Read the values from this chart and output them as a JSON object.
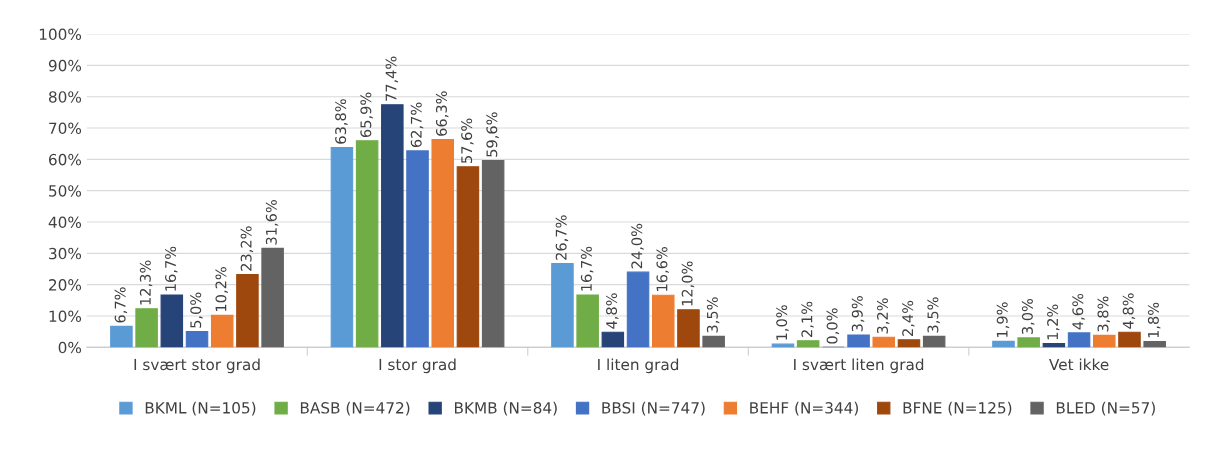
{
  "chart_data": {
    "type": "bar",
    "categories": [
      "I svært stor grad",
      "I stor grad",
      "I liten grad",
      "I svært liten grad",
      "Vet ikke"
    ],
    "series": [
      {
        "name": "BKML (N=105)",
        "color": "#5b9bd5",
        "values": [
          6.7,
          63.8,
          26.7,
          1.0,
          1.9
        ],
        "value_labels": [
          "6,7%",
          "63,8%",
          "26,7%",
          "1,0%",
          "1,9%"
        ]
      },
      {
        "name": "BASB (N=472)",
        "color": "#70ad47",
        "values": [
          12.3,
          65.9,
          16.7,
          2.1,
          3.0
        ],
        "value_labels": [
          "12,3%",
          "65,9%",
          "16,7%",
          "2,1%",
          "3,0%"
        ]
      },
      {
        "name": "BKMB (N=84)",
        "color": "#264478",
        "values": [
          16.7,
          77.4,
          4.8,
          0.0,
          1.2
        ],
        "value_labels": [
          "16,7%",
          "77,4%",
          "4,8%",
          "0,0%",
          "1,2%"
        ]
      },
      {
        "name": "BBSI (N=747)",
        "color": "#4472c4",
        "values": [
          5.0,
          62.7,
          24.0,
          3.9,
          4.6
        ],
        "value_labels": [
          "5,0%",
          "62,7%",
          "24,0%",
          "3,9%",
          "4,6%"
        ]
      },
      {
        "name": "BEHF (N=344)",
        "color": "#ed7d31",
        "values": [
          10.2,
          66.3,
          16.6,
          3.2,
          3.8
        ],
        "value_labels": [
          "10,2%",
          "66,3%",
          "16,6%",
          "3,2%",
          "3,8%"
        ]
      },
      {
        "name": "BFNE (N=125)",
        "color": "#9e480e",
        "values": [
          23.2,
          57.6,
          12.0,
          2.4,
          4.8
        ],
        "value_labels": [
          "23,2%",
          "57,6%",
          "12,0%",
          "2,4%",
          "4,8%"
        ]
      },
      {
        "name": "BLED (N=57)",
        "color": "#636363",
        "values": [
          31.6,
          59.6,
          3.5,
          3.5,
          1.8
        ],
        "value_labels": [
          "31,6%",
          "59,6%",
          "3,5%",
          "3,5%",
          "1,8%"
        ]
      }
    ],
    "ylim": [
      0,
      100
    ],
    "yticks": [
      {
        "value": 0,
        "label": "0%"
      },
      {
        "value": 10,
        "label": "10%"
      },
      {
        "value": 20,
        "label": "20%"
      },
      {
        "value": 30,
        "label": "30%"
      },
      {
        "value": 40,
        "label": "40%"
      },
      {
        "value": 50,
        "label": "50%"
      },
      {
        "value": 60,
        "label": "60%"
      },
      {
        "value": 70,
        "label": "70%"
      },
      {
        "value": 80,
        "label": "80%"
      },
      {
        "value": 90,
        "label": "90%"
      },
      {
        "value": 100,
        "label": "100%"
      }
    ],
    "grid": "y",
    "legend": "bottom"
  }
}
